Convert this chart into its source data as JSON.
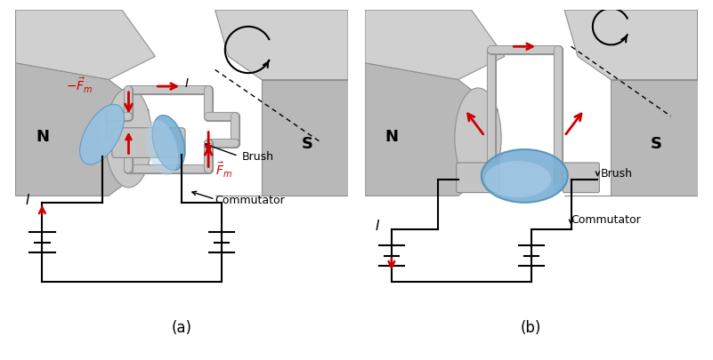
{
  "bg_color": "#ffffff",
  "mag_light": "#d0d0d0",
  "mag_mid": "#b8b8b8",
  "mag_dark": "#909090",
  "mag_top": "#c8c8c8",
  "wire_color": "#c8c8c8",
  "wire_edge": "#909090",
  "blue_brush": "#7ab0d4",
  "blue_brush_light": "#b0d0e8",
  "blue_brush_dark": "#5090b8",
  "red_arrow": "#cc0000",
  "black": "#000000",
  "label_a": "(a)",
  "label_b": "(b)",
  "label_N": "N",
  "label_S": "S",
  "label_brush": "Brush",
  "label_commutator": "Commutator",
  "label_I": "I",
  "label_fm_up": "$\\vec{F}_m$",
  "label_fm_down": "$-\\vec{F}_m$"
}
